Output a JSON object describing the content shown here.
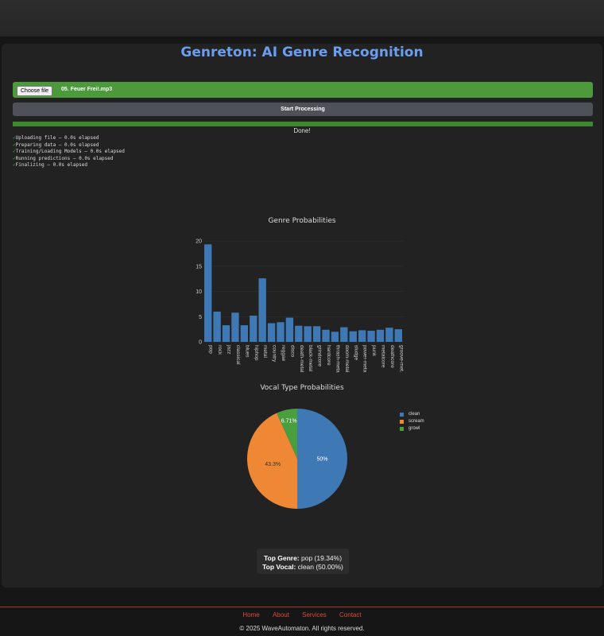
{
  "header": {
    "title": "Genreton: AI Genre Recognition"
  },
  "upload": {
    "choose_label": "Choose file",
    "file_name": "05. Feuer Frei!.mp3"
  },
  "start_button": "Start Processing",
  "progress": {
    "percent": 100,
    "status": "Done!"
  },
  "log": [
    {
      "check": "✓",
      "text": "Uploading file — 0.0s elapsed"
    },
    {
      "check": "✓",
      "text": "Preparing data — 0.0s elapsed"
    },
    {
      "check": "✓",
      "text": "Training/Loading Models — 0.0s elapsed"
    },
    {
      "check": "✓",
      "text": "Running predictions — 0.0s elapsed"
    },
    {
      "check": "✓",
      "text": "Finalizing — 0.0s elapsed"
    }
  ],
  "chart_data": [
    {
      "type": "bar",
      "title": "Genre Probabilities",
      "categories": [
        "pop",
        "rock",
        "jazz",
        "classical",
        "blues",
        "hiphop",
        "metal",
        "country",
        "reggae",
        "disco",
        "death-metal",
        "black-metal",
        "grindcore",
        "hardcore",
        "thrash-meta",
        "doom-metal",
        "sludge",
        "power-meta",
        "punk",
        "metalcore",
        "deathcore",
        "groove-met."
      ],
      "values": [
        19.34,
        6.0,
        3.3,
        5.8,
        3.3,
        5.2,
        12.6,
        3.7,
        3.9,
        4.8,
        3.2,
        3.1,
        3.1,
        2.4,
        2.0,
        2.9,
        2.1,
        2.3,
        2.2,
        2.4,
        2.8,
        2.5
      ],
      "yticks": [
        0,
        5,
        10,
        15,
        20
      ],
      "ylim": [
        0,
        20.5
      ],
      "color": "#3f79b5"
    },
    {
      "type": "pie",
      "title": "Vocal Type Probabilities",
      "labels": [
        "clean",
        "scream",
        "growl"
      ],
      "values": [
        50,
        43.3,
        6.71
      ],
      "value_labels": [
        "50%",
        "43.3%",
        "6.71%"
      ],
      "colors": [
        "#3f79b5",
        "#ee8835",
        "#4a9e3f"
      ],
      "legend": "right"
    }
  ],
  "summary": {
    "genre_label": "Top Genre:",
    "genre_value": " pop (19.34%)",
    "vocal_label": "Top Vocal:",
    "vocal_value": " clean (50.00%)"
  },
  "footer": {
    "links": [
      "Home",
      "About",
      "Services",
      "Contact"
    ],
    "copyright": "© 2025 WaveAutomaton. All rights reserved."
  }
}
